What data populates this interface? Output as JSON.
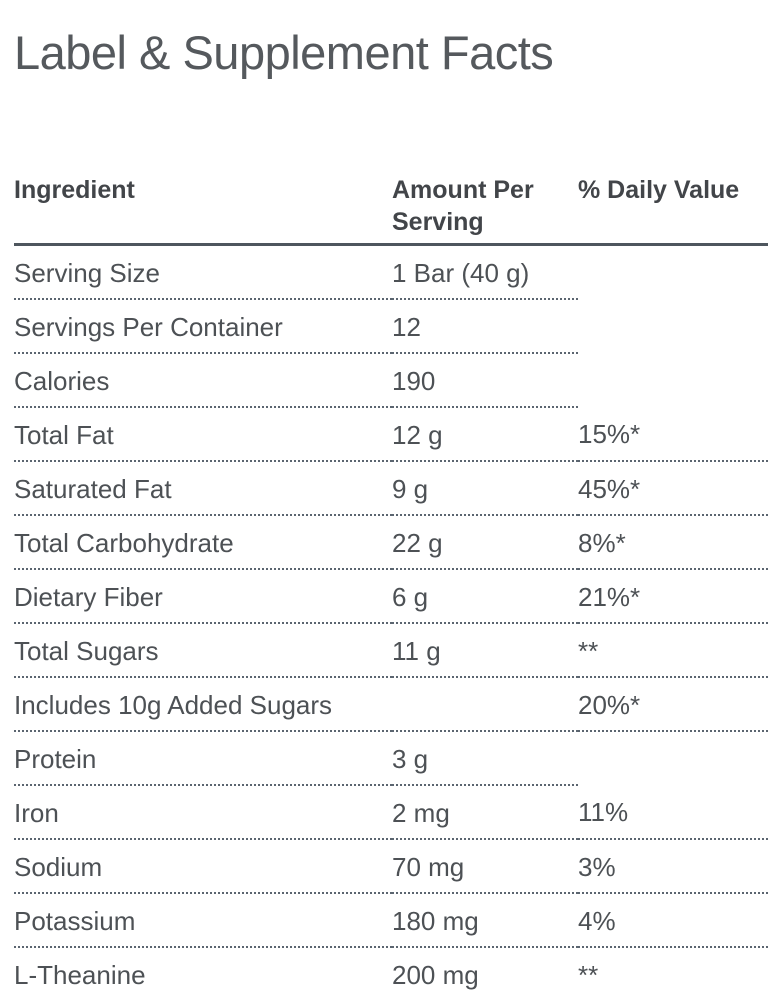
{
  "page": {
    "title": "Label & Supplement Facts"
  },
  "colors": {
    "title_text": "#55595d",
    "header_text": "#424549",
    "body_text": "#4d5155",
    "header_rule": "#4e565e",
    "row_rule_dotted": "#5b6570",
    "background": "#ffffff"
  },
  "table": {
    "headers": [
      "Ingredient",
      "Amount Per Serving",
      "% Daily Value"
    ],
    "rows": [
      {
        "ingredient": "Serving Size",
        "amount": "1 Bar (40 g)",
        "dv": ""
      },
      {
        "ingredient": "Servings Per Container",
        "amount": "12",
        "dv": ""
      },
      {
        "ingredient": "Calories",
        "amount": "190",
        "dv": ""
      },
      {
        "ingredient": "Total Fat",
        "amount": "12 g",
        "dv": "15%*"
      },
      {
        "ingredient": "Saturated Fat",
        "amount": "9 g",
        "dv": "45%*"
      },
      {
        "ingredient": "Total Carbohydrate",
        "amount": "22 g",
        "dv": "8%*"
      },
      {
        "ingredient": "Dietary Fiber",
        "amount": "6 g",
        "dv": "21%*"
      },
      {
        "ingredient": "Total Sugars",
        "amount": "11 g",
        "dv": "**"
      },
      {
        "ingredient": "Includes 10g Added Sugars",
        "amount": "",
        "dv": "20%*"
      },
      {
        "ingredient": "Protein",
        "amount": "3 g",
        "dv": ""
      },
      {
        "ingredient": "Iron",
        "amount": "2 mg",
        "dv": "11%"
      },
      {
        "ingredient": "Sodium",
        "amount": "70 mg",
        "dv": "3%"
      },
      {
        "ingredient": "Potassium",
        "amount": "180 mg",
        "dv": "4%"
      },
      {
        "ingredient": "L-Theanine",
        "amount": "200 mg",
        "dv": "**"
      }
    ]
  }
}
